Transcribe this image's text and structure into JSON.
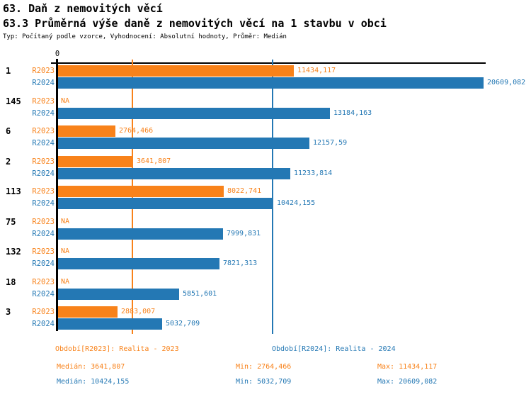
{
  "header": {
    "title_line1": "63. Daň z nemovitých věcí",
    "title_line2": "63.3 Průměrná výše daně z nemovitých věcí na 1 stavbu v obci",
    "subtitle": "Typ: Počítaný podle vzorce, Vyhodnocení: Absolutní hodnoty, Průměr: Medián"
  },
  "colors": {
    "r2023": "#F8821A",
    "r2024": "#2478B4",
    "axis": "#000000"
  },
  "chart_data": {
    "type": "bar",
    "orientation": "horizontal",
    "title": "63.3 Průměrná výše daně z nemovitých věcí na 1 stavbu v obci",
    "x_axis": {
      "origin_label": "0",
      "min": 0,
      "max": 20609.082,
      "gridlines": "median markers only"
    },
    "series_row_labels": {
      "r2023": "R2023",
      "r2024": "R2024"
    },
    "na_label": "NA",
    "rows": [
      {
        "group": "1",
        "r2023": 11434.117,
        "r2023_label": "11434,117",
        "r2024": 20609.082,
        "r2024_label": "20609,082"
      },
      {
        "group": "145",
        "r2023": null,
        "r2023_label": "NA",
        "r2024": 13184.163,
        "r2024_label": "13184,163"
      },
      {
        "group": "6",
        "r2023": 2764.466,
        "r2023_label": "2764,466",
        "r2024": 12157.59,
        "r2024_label": "12157,59"
      },
      {
        "group": "2",
        "r2023": 3641.807,
        "r2023_label": "3641,807",
        "r2024": 11233.814,
        "r2024_label": "11233,814"
      },
      {
        "group": "113",
        "r2023": 8022.741,
        "r2023_label": "8022,741",
        "r2024": 10424.155,
        "r2024_label": "10424,155"
      },
      {
        "group": "75",
        "r2023": null,
        "r2023_label": "NA",
        "r2024": 7999.831,
        "r2024_label": "7999,831"
      },
      {
        "group": "132",
        "r2023": null,
        "r2023_label": "NA",
        "r2024": 7821.313,
        "r2024_label": "7821,313"
      },
      {
        "group": "18",
        "r2023": null,
        "r2023_label": "NA",
        "r2024": 5851.601,
        "r2024_label": "5851,601"
      },
      {
        "group": "3",
        "r2023": 2883.007,
        "r2023_label": "2883,007",
        "r2024": 5032.709,
        "r2024_label": "5032,709"
      }
    ],
    "median_lines": {
      "r2023": 3641.807,
      "r2024": 10424.155
    },
    "legend_position": "bottom"
  },
  "legend": {
    "r2023": "Období[R2023]: Realita - 2023",
    "r2024": "Období[R2024]: Realita - 2024"
  },
  "stats": {
    "r2023": {
      "median": "Medián: 3641,807",
      "min": "Min: 2764,466",
      "max": "Max: 11434,117"
    },
    "r2024": {
      "median": "Medián: 10424,155",
      "min": "Min: 5032,709",
      "max": "Max: 20609,082"
    }
  }
}
